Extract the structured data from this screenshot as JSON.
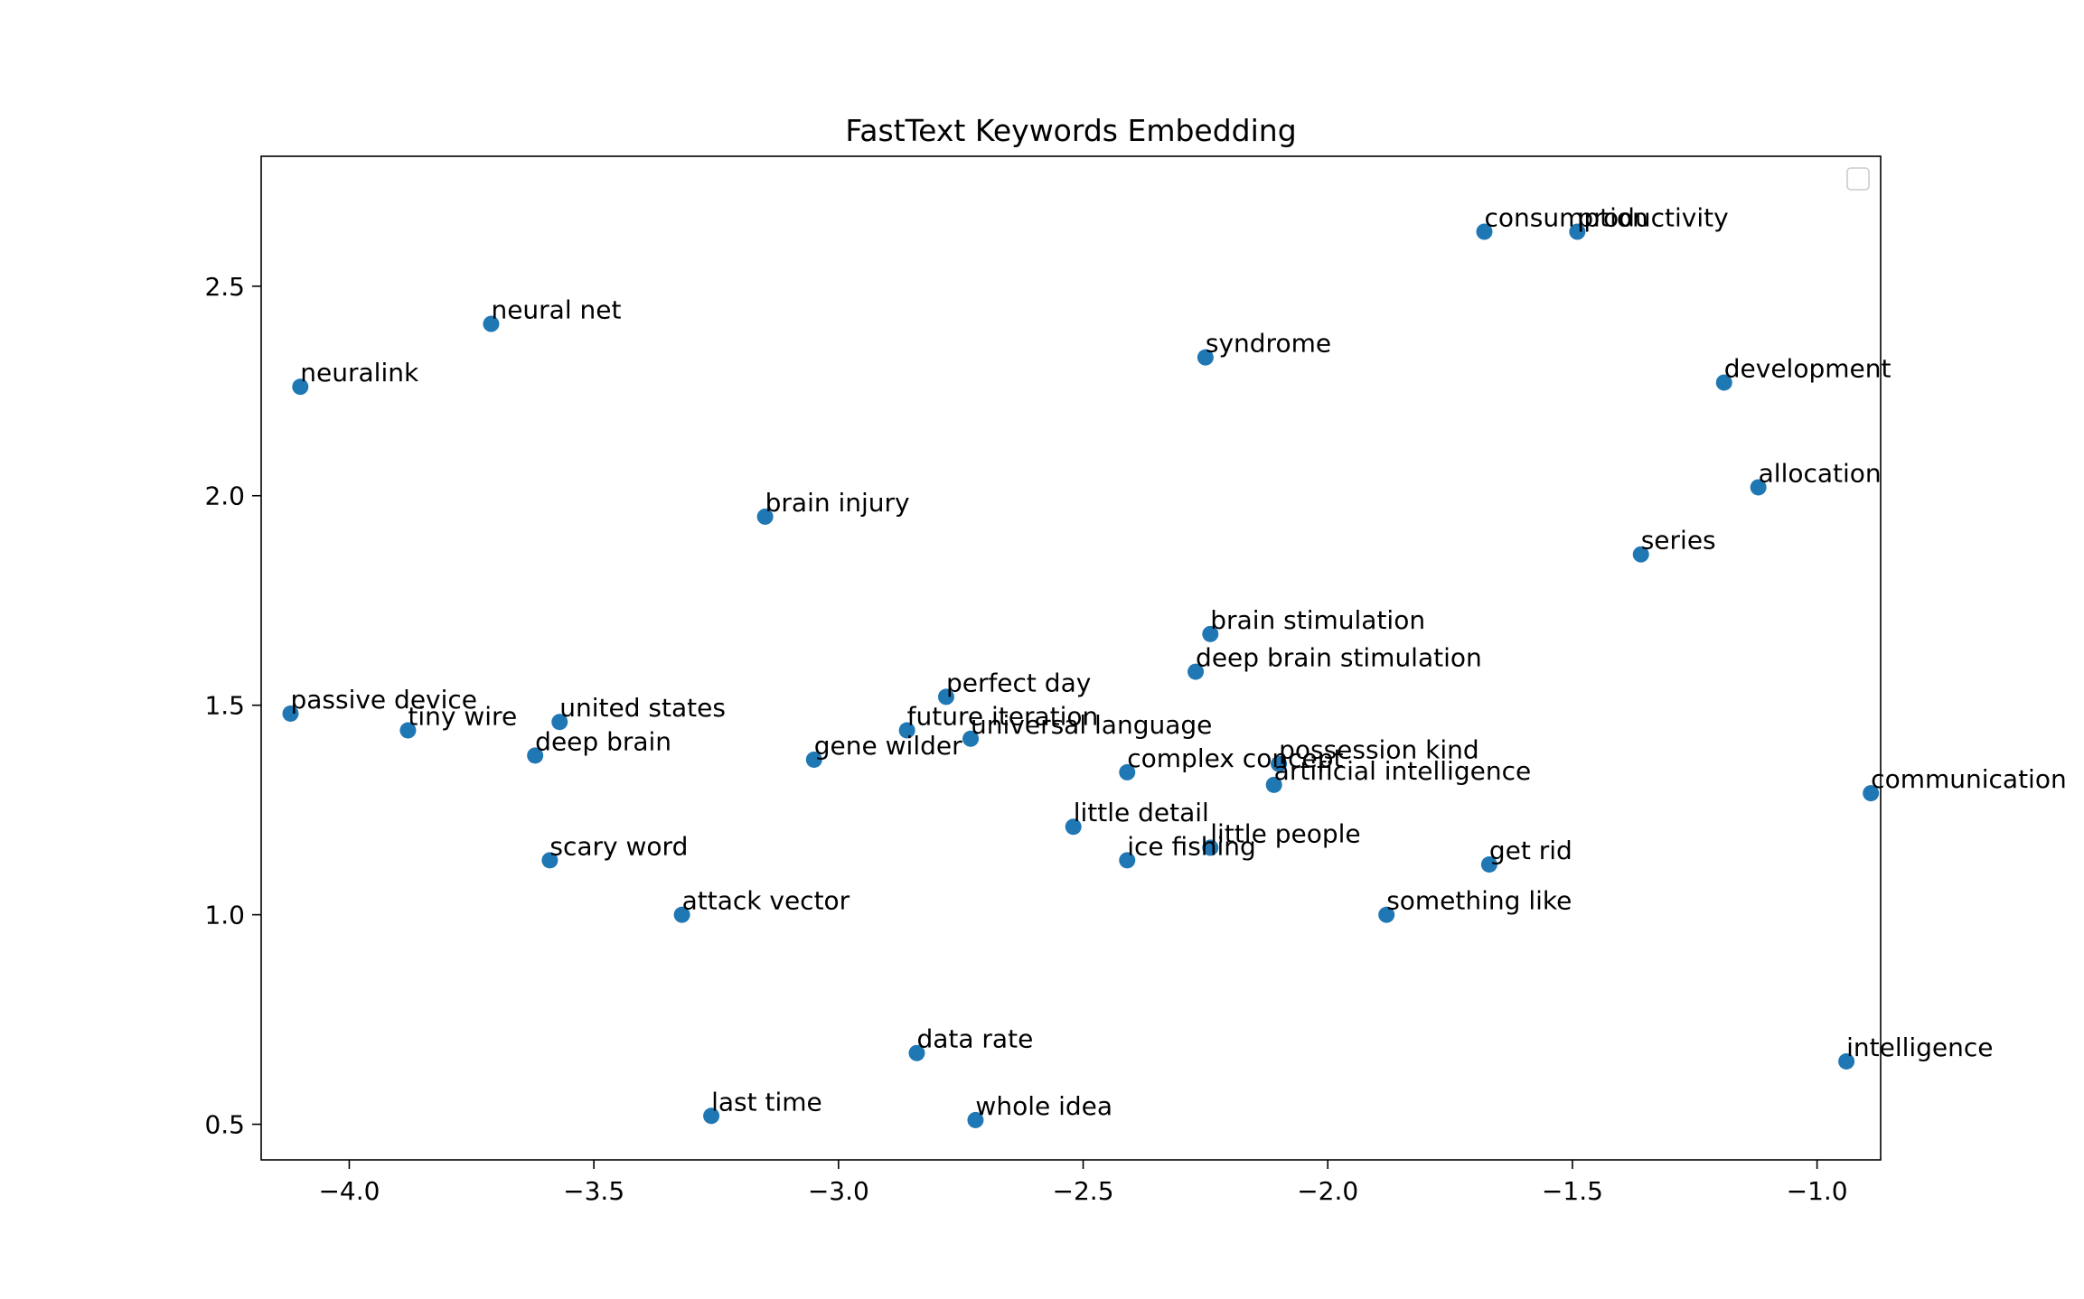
{
  "chart_data": {
    "type": "scatter",
    "title": "FastText Keywords Embedding",
    "xlabel": "",
    "ylabel": "",
    "xlim": [
      -4.18,
      -0.87
    ],
    "ylim": [
      0.415,
      2.81
    ],
    "xticks": [
      -4.0,
      -3.5,
      -3.0,
      -2.5,
      -2.0,
      -1.5,
      -1.0
    ],
    "xtick_labels": [
      "−4.0",
      "−3.5",
      "−3.0",
      "−2.5",
      "−2.0",
      "−1.5",
      "−1.0"
    ],
    "yticks": [
      0.5,
      1.0,
      1.5,
      2.0,
      2.5
    ],
    "ytick_labels": [
      "0.5",
      "1.0",
      "1.5",
      "2.0",
      "2.5"
    ],
    "grid": false,
    "legend": "top-right, empty",
    "marker_color": "#1f77b4",
    "points": [
      {
        "label": "neural net",
        "x": -3.71,
        "y": 2.41
      },
      {
        "label": "neuralink",
        "x": -4.1,
        "y": 2.26
      },
      {
        "label": "brain injury",
        "x": -3.15,
        "y": 1.95
      },
      {
        "label": "passive device",
        "x": -4.12,
        "y": 1.48
      },
      {
        "label": "tiny wire",
        "x": -3.88,
        "y": 1.44
      },
      {
        "label": "united states",
        "x": -3.57,
        "y": 1.46
      },
      {
        "label": "deep brain",
        "x": -3.62,
        "y": 1.38
      },
      {
        "label": "scary word",
        "x": -3.59,
        "y": 1.13
      },
      {
        "label": "attack vector",
        "x": -3.32,
        "y": 1.0
      },
      {
        "label": "gene wilder",
        "x": -3.05,
        "y": 1.37
      },
      {
        "label": "perfect day",
        "x": -2.78,
        "y": 1.52
      },
      {
        "label": "future iteration",
        "x": -2.86,
        "y": 1.44
      },
      {
        "label": "universal language",
        "x": -2.73,
        "y": 1.42
      },
      {
        "label": "data rate",
        "x": -2.84,
        "y": 0.67
      },
      {
        "label": "last time",
        "x": -3.26,
        "y": 0.52
      },
      {
        "label": "whole idea",
        "x": -2.72,
        "y": 0.51
      },
      {
        "label": "little detail",
        "x": -2.52,
        "y": 1.21
      },
      {
        "label": "ice fishing",
        "x": -2.41,
        "y": 1.13
      },
      {
        "label": "complex concept",
        "x": -2.41,
        "y": 1.34
      },
      {
        "label": "little people",
        "x": -2.24,
        "y": 1.16
      },
      {
        "label": "syndrome",
        "x": -2.25,
        "y": 2.33
      },
      {
        "label": "brain stimulation",
        "x": -2.24,
        "y": 1.67
      },
      {
        "label": "deep brain stimulation",
        "x": -2.27,
        "y": 1.58
      },
      {
        "label": "possession kind",
        "x": -2.1,
        "y": 1.36
      },
      {
        "label": "artificial intelligence",
        "x": -2.11,
        "y": 1.31
      },
      {
        "label": "something like",
        "x": -1.88,
        "y": 1.0
      },
      {
        "label": "get rid",
        "x": -1.67,
        "y": 1.12
      },
      {
        "label": "consumption",
        "x": -1.68,
        "y": 2.63
      },
      {
        "label": "productivity",
        "x": -1.49,
        "y": 2.63
      },
      {
        "label": "development",
        "x": -1.19,
        "y": 2.27
      },
      {
        "label": "allocation",
        "x": -1.12,
        "y": 2.02
      },
      {
        "label": "series",
        "x": -1.36,
        "y": 1.86
      },
      {
        "label": "communication",
        "x": -0.89,
        "y": 1.29
      },
      {
        "label": "intelligence",
        "x": -0.94,
        "y": 0.65
      }
    ]
  }
}
